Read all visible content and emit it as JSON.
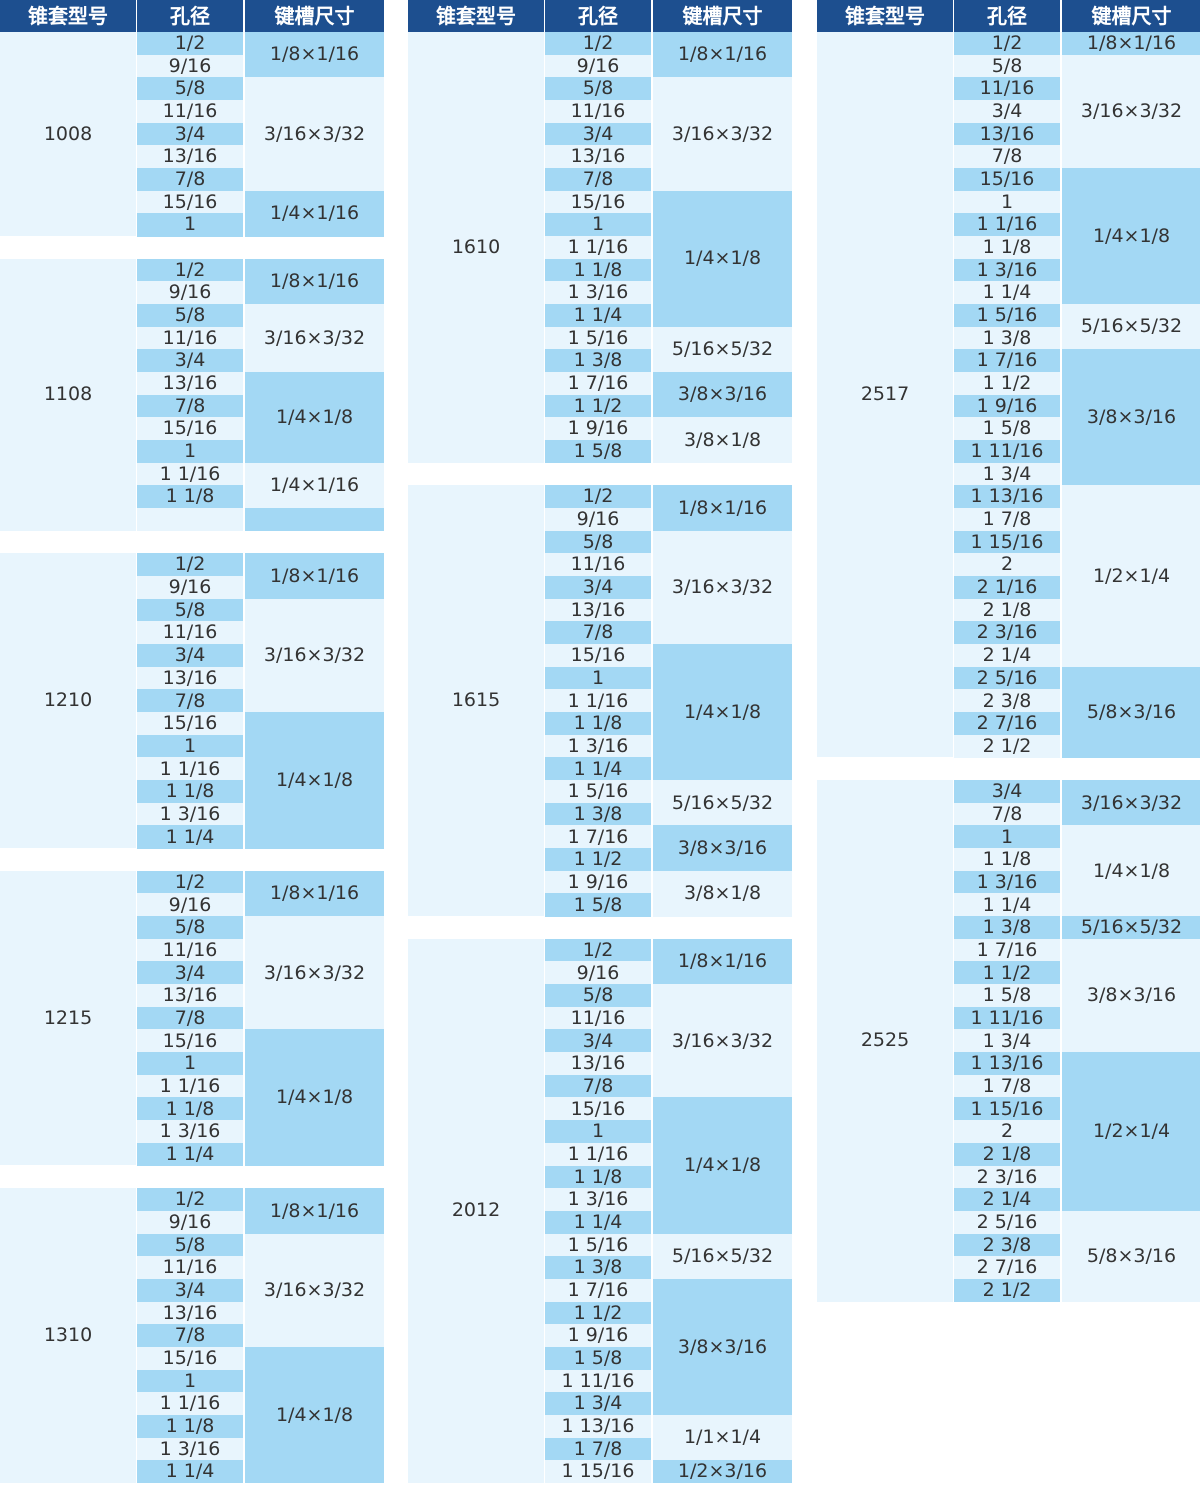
{
  "headers": [
    "锥套型号",
    "孔径",
    "键槽尺寸"
  ],
  "colors": {
    "header": "#1d4f8f",
    "cell_blue": "#a3d8f4",
    "cell_light": "#e8f5fd"
  },
  "columns": [
    {
      "groups": [
        {
          "model": "1008",
          "keyways": [
            {
              "size": "1/8×1/16",
              "bores": [
                "1/2",
                "9/16"
              ]
            },
            {
              "size": "3/16×3/32",
              "bores": [
                "5/8",
                "11/16",
                "3/4",
                "13/16",
                "7/8"
              ]
            },
            {
              "size": "1/4×1/16",
              "bores": [
                "15/16",
                "1"
              ]
            }
          ]
        },
        {
          "model": "1108",
          "keyways": [
            {
              "size": "1/8×1/16",
              "bores": [
                "1/2",
                "9/16"
              ]
            },
            {
              "size": "3/16×3/32",
              "bores": [
                "5/8",
                "11/16",
                "3/4"
              ]
            },
            {
              "size": "1/4×1/8",
              "bores": [
                "13/16",
                "7/8",
                "15/16",
                "1"
              ]
            },
            {
              "size": "1/4×1/16",
              "bores": [
                "1 1/16",
                "1 1/8"
              ]
            },
            {
              "size": "",
              "bores": [
                ""
              ]
            }
          ]
        },
        {
          "model": "1210",
          "keyways": [
            {
              "size": "1/8×1/16",
              "bores": [
                "1/2",
                "9/16"
              ]
            },
            {
              "size": "3/16×3/32",
              "bores": [
                "5/8",
                "11/16",
                "3/4",
                "13/16",
                "7/8"
              ]
            },
            {
              "size": "1/4×1/8",
              "bores": [
                "15/16",
                "1",
                "1 1/16",
                "1 1/8",
                "1 3/16",
                "1 1/4"
              ]
            }
          ]
        },
        {
          "model": "1215",
          "keyways": [
            {
              "size": "1/8×1/16",
              "bores": [
                "1/2",
                "9/16"
              ]
            },
            {
              "size": "3/16×3/32",
              "bores": [
                "5/8",
                "11/16",
                "3/4",
                "13/16",
                "7/8"
              ]
            },
            {
              "size": "1/4×1/8",
              "bores": [
                "15/16",
                "1",
                "1 1/16",
                "1 1/8",
                "1 3/16",
                "1 1/4"
              ]
            }
          ]
        },
        {
          "model": "1310",
          "keyways": [
            {
              "size": "1/8×1/16",
              "bores": [
                "1/2",
                "9/16"
              ]
            },
            {
              "size": "3/16×3/32",
              "bores": [
                "5/8",
                "11/16",
                "3/4",
                "13/16",
                "7/8"
              ]
            },
            {
              "size": "1/4×1/8",
              "bores": [
                "15/16",
                "1",
                "1 1/16",
                "1 1/8",
                "1 3/16",
                "1 1/4"
              ]
            }
          ]
        }
      ]
    },
    {
      "groups": [
        {
          "model": "1610",
          "keyways": [
            {
              "size": "1/8×1/16",
              "bores": [
                "1/2",
                "9/16"
              ]
            },
            {
              "size": "3/16×3/32",
              "bores": [
                "5/8",
                "11/16",
                "3/4",
                "13/16",
                "7/8"
              ]
            },
            {
              "size": "1/4×1/8",
              "bores": [
                "15/16",
                "1",
                "1 1/16",
                "1 1/8",
                "1 3/16",
                "1 1/4"
              ]
            },
            {
              "size": "5/16×5/32",
              "bores": [
                "1 5/16",
                "1 3/8"
              ]
            },
            {
              "size": "3/8×3/16",
              "bores": [
                "1 7/16",
                "1 1/2"
              ]
            },
            {
              "size": "3/8×1/8",
              "bores": [
                "1 9/16",
                "1 5/8"
              ]
            }
          ]
        },
        {
          "model": "1615",
          "keyways": [
            {
              "size": "1/8×1/16",
              "bores": [
                "1/2",
                "9/16"
              ]
            },
            {
              "size": "3/16×3/32",
              "bores": [
                "5/8",
                "11/16",
                "3/4",
                "13/16",
                "7/8"
              ]
            },
            {
              "size": "1/4×1/8",
              "bores": [
                "15/16",
                "1",
                "1 1/16",
                "1 1/8",
                "1 3/16",
                "1 1/4"
              ]
            },
            {
              "size": "5/16×5/32",
              "bores": [
                "1 5/16",
                "1 3/8"
              ]
            },
            {
              "size": "3/8×3/16",
              "bores": [
                "1 7/16",
                "1 1/2"
              ]
            },
            {
              "size": "3/8×1/8",
              "bores": [
                "1 9/16",
                "1 5/8"
              ]
            }
          ]
        },
        {
          "model": "2012",
          "keyways": [
            {
              "size": "1/8×1/16",
              "bores": [
                "1/2",
                "9/16"
              ]
            },
            {
              "size": "3/16×3/32",
              "bores": [
                "5/8",
                "11/16",
                "3/4",
                "13/16",
                "7/8"
              ]
            },
            {
              "size": "1/4×1/8",
              "bores": [
                "15/16",
                "1",
                "1 1/16",
                "1 1/8",
                "1 3/16",
                "1 1/4"
              ]
            },
            {
              "size": "5/16×5/32",
              "bores": [
                "1 5/16",
                "1 3/8"
              ]
            },
            {
              "size": "3/8×3/16",
              "bores": [
                "1 7/16",
                "1 1/2",
                "1 9/16",
                "1 5/8",
                "1 11/16",
                "1 3/4"
              ]
            },
            {
              "size": "1/1×1/4",
              "bores": [
                "1 13/16",
                "1 7/8"
              ]
            },
            {
              "size": "1/2×3/16",
              "bores": [
                "1 15/16"
              ]
            }
          ]
        }
      ]
    },
    {
      "groups": [
        {
          "model": "2517",
          "keyways": [
            {
              "size": "1/8×1/16",
              "bores": [
                "1/2"
              ]
            },
            {
              "size": "3/16×3/32",
              "bores": [
                "5/8",
                "11/16",
                "3/4",
                "13/16",
                "7/8"
              ]
            },
            {
              "size": "1/4×1/8",
              "bores": [
                "15/16",
                "1",
                "1 1/16",
                "1 1/8",
                "1 3/16",
                "1 1/4"
              ]
            },
            {
              "size": "5/16×5/32",
              "bores": [
                "1 5/16",
                "1 3/8"
              ]
            },
            {
              "size": "3/8×3/16",
              "bores": [
                "1 7/16",
                "1 1/2",
                "1 9/16",
                "1 5/8",
                "1 11/16",
                "1 3/4"
              ]
            },
            {
              "size": "1/2×1/4",
              "bores": [
                "1 13/16",
                "1 7/8",
                "1 15/16",
                "2",
                "2 1/16",
                "2 1/8",
                "2 3/16",
                "2 1/4"
              ]
            },
            {
              "size": "5/8×3/16",
              "bores": [
                "2 5/16",
                "2 3/8",
                "2 7/16",
                "2 1/2"
              ]
            }
          ]
        },
        {
          "model": "2525",
          "keyways": [
            {
              "size": "3/16×3/32",
              "bores": [
                "3/4",
                "7/8"
              ]
            },
            {
              "size": "1/4×1/8",
              "bores": [
                "1",
                "1 1/8",
                "1 3/16",
                "1 1/4"
              ]
            },
            {
              "size": "5/16×5/32",
              "bores": [
                "1 3/8"
              ]
            },
            {
              "size": "3/8×3/16",
              "bores": [
                "1 7/16",
                "1 1/2",
                "1 5/8",
                "1 11/16",
                "1 3/4"
              ]
            },
            {
              "size": "1/2×1/4",
              "bores": [
                "1 13/16",
                "1 7/8",
                "1 15/16",
                "2",
                "2 1/8",
                "2 3/16",
                "2 1/4"
              ]
            },
            {
              "size": "5/8×3/16",
              "bores": [
                "2 5/16",
                "2 3/8",
                "2 7/16",
                "2 1/2"
              ]
            }
          ]
        }
      ]
    }
  ]
}
